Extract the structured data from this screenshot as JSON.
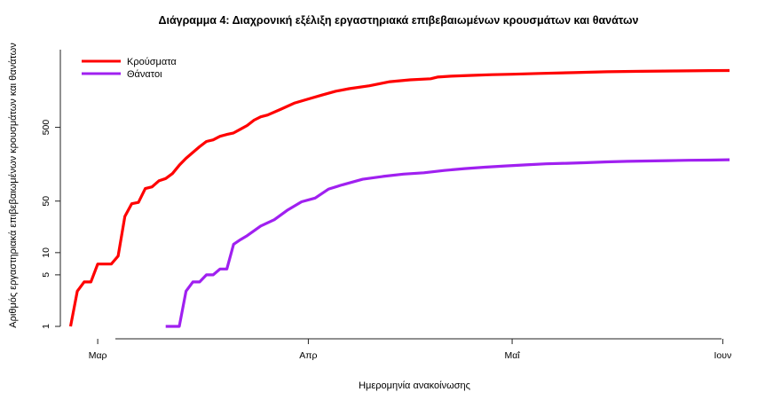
{
  "chart_data": {
    "type": "line",
    "title": "Διάγραμμα 4: Διαχρονική εξέλιξη εργαστηριακά επιβεβαιωμένων κρουσμάτων και θανάτων",
    "xlabel": "Ημερομηνία ανακοίνωσης",
    "ylabel": "Αριθμός εργαστηριακά επιβεβαιωμένων κρουσμάτων και θανάτων",
    "y_scale": "log",
    "ylim": [
      0.85,
      4300
    ],
    "xlim_day": [
      -5.5,
      96
    ],
    "y_ticks": [
      {
        "value": 1,
        "label": "1"
      },
      {
        "value": 5,
        "label": "5"
      },
      {
        "value": 10,
        "label": "10"
      },
      {
        "value": 50,
        "label": "50"
      },
      {
        "value": 500,
        "label": "500"
      }
    ],
    "x_ticks": [
      {
        "day": 0,
        "label": "Μαρ"
      },
      {
        "day": 31,
        "label": "Απρ"
      },
      {
        "day": 61,
        "label": "Μαΐ"
      },
      {
        "day": 92,
        "label": "Ιουν"
      }
    ],
    "legend": {
      "position": "top-left"
    },
    "series": [
      {
        "name": "Κρούσματα",
        "color": "#ff0000",
        "days": [
          -4,
          -3,
          -2,
          -1,
          0,
          1,
          2,
          3,
          4,
          5,
          6,
          7,
          8,
          9,
          10,
          11,
          12,
          13,
          14,
          15,
          16,
          17,
          18,
          19,
          20,
          21,
          22,
          23,
          24,
          25,
          27,
          29,
          31,
          33,
          35,
          37,
          40,
          43,
          46,
          49,
          50,
          52,
          55,
          58,
          61,
          65,
          70,
          75,
          80,
          85,
          90,
          93
        ],
        "values": [
          1,
          3,
          4,
          4,
          7,
          7,
          7,
          9,
          31,
          46,
          48,
          74,
          78,
          94,
          101,
          118,
          153,
          190,
          228,
          273,
          322,
          338,
          378,
          400,
          420,
          472,
          530,
          626,
          695,
          735,
          883,
          1069,
          1212,
          1370,
          1544,
          1673,
          1832,
          2081,
          2207,
          2278,
          2401,
          2472,
          2534,
          2591,
          2626,
          2691,
          2760,
          2834,
          2876,
          2909,
          2937,
          2952
        ]
      },
      {
        "name": "Θάνατοι",
        "color": "#a020f0",
        "days": [
          10,
          11,
          12,
          13,
          14,
          15,
          16,
          17,
          18,
          19,
          20,
          21,
          22,
          24,
          26,
          28,
          30,
          32,
          34,
          36,
          39,
          42,
          45,
          48,
          51,
          54,
          57,
          60,
          63,
          66,
          69,
          72,
          75,
          78,
          81,
          84,
          87,
          90,
          93
        ],
        "values": [
          1,
          1,
          1,
          3,
          4,
          4,
          5,
          5,
          6,
          6,
          13,
          15,
          17,
          23,
          28,
          38,
          49,
          55,
          73,
          83,
          99,
          108,
          116,
          121,
          130,
          138,
          144,
          150,
          155,
          160,
          163,
          166,
          170,
          173,
          175,
          177,
          179,
          180,
          182
        ]
      }
    ]
  }
}
